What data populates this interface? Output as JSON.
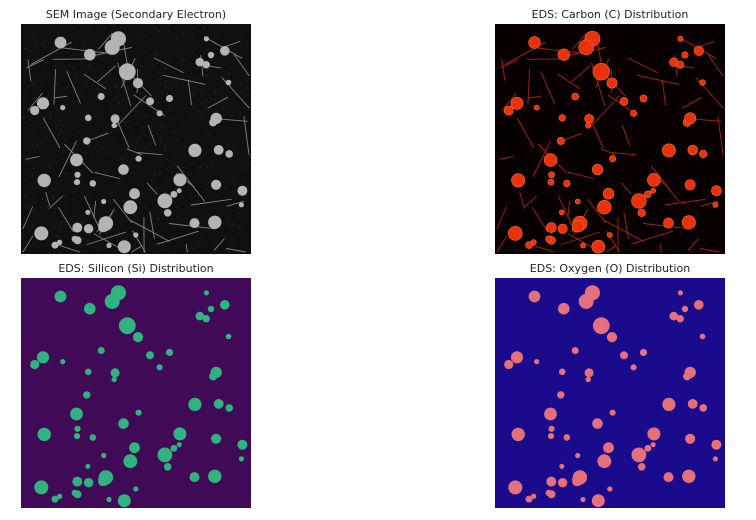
{
  "figure": {
    "panels": [
      {
        "id": "sem",
        "title": "SEM Image (Secondary Electron)",
        "image_kind": "sem-grayscale",
        "colors": {
          "background": "#101010",
          "particle": "#b4b4b4",
          "wire": "#8f8f8f"
        }
      },
      {
        "id": "carbon",
        "title": "EDS: Carbon (C) Distribution",
        "image_kind": "eds-carbon-map",
        "colors": {
          "background": "#080000",
          "particle": "#e8320e",
          "wire": "#b82a10"
        }
      },
      {
        "id": "silicon",
        "title": "EDS: Silicon (Si) Distribution",
        "image_kind": "eds-silicon-map",
        "colors": {
          "background": "#410a56",
          "particle": "#2fb47f"
        }
      },
      {
        "id": "oxygen",
        "title": "EDS: Oxygen (O) Distribution",
        "image_kind": "eds-oxygen-map",
        "colors": {
          "background": "#1a0a8c",
          "particle": "#e3707a"
        }
      }
    ]
  }
}
